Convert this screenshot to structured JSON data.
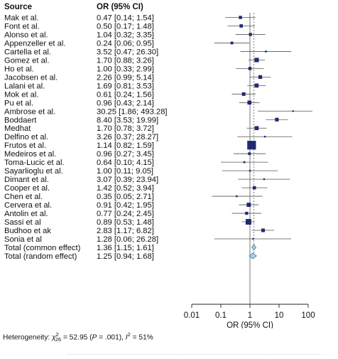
{
  "headers": {
    "source": "Source",
    "effect": "OR (95% CI)"
  },
  "chart_data": {
    "type": "forest",
    "scale": "log",
    "xlabel": "OR (95% CI)",
    "xticks": [
      0.01,
      0.1,
      1,
      10,
      100
    ],
    "xtick_labels": [
      "0.01",
      "0.1",
      "1",
      "10",
      "100"
    ],
    "xlim": [
      0.01,
      100
    ],
    "null_line": 1,
    "studies": [
      {
        "name": "Mak et al.",
        "label": "0.47 [0.14;  1.54]",
        "or": 0.47,
        "lo": 0.14,
        "hi": 1.54,
        "w": 3.2
      },
      {
        "name": "Font et al.",
        "label": "0.50 [0.17;  1.48]",
        "or": 0.5,
        "lo": 0.17,
        "hi": 1.48,
        "w": 3.5
      },
      {
        "name": "Alonso et al.",
        "label": "1.04 [0.32;  3.35]",
        "or": 1.04,
        "lo": 0.32,
        "hi": 3.35,
        "w": 2.9
      },
      {
        "name": "Appenzeller et al.",
        "label": "0.24 [0.06;  0.95]",
        "or": 0.24,
        "lo": 0.06,
        "hi": 0.95,
        "w": 2.3
      },
      {
        "name": "Cartella et al.",
        "label": "3.52 [0.47; 26.30]",
        "or": 3.52,
        "lo": 0.47,
        "hi": 26.3,
        "w": 1.0
      },
      {
        "name": "Gomez et al.",
        "label": "1.70 [0.88;  3.26]",
        "or": 1.7,
        "lo": 0.88,
        "hi": 3.26,
        "w": 6.0
      },
      {
        "name": "Ho et al.",
        "label": "1.00 [0.33;  2.99]",
        "or": 1.0,
        "lo": 0.33,
        "hi": 2.99,
        "w": 3.2
      },
      {
        "name": "Jacobsen et al.",
        "label": "2.26 [0.99;  5.14]",
        "or": 2.26,
        "lo": 0.99,
        "hi": 5.14,
        "w": 4.5
      },
      {
        "name": "Lalani et al.",
        "label": "1.69 [0.81;  3.53]",
        "or": 1.69,
        "lo": 0.81,
        "hi": 3.53,
        "w": 5.2
      },
      {
        "name": "Mok et al.",
        "label": "0.61 [0.24;  1.56]",
        "or": 0.61,
        "lo": 0.24,
        "hi": 1.56,
        "w": 4.0
      },
      {
        "name": "Pu et al.",
        "label": "0.96 [0.43;  2.14]",
        "or": 0.96,
        "lo": 0.43,
        "hi": 2.14,
        "w": 5.0
      },
      {
        "name": "Ambrose et al.",
        "label": "30.25 [1.86; 493.28]",
        "or": 30.25,
        "lo": 1.86,
        "hi": 493.28,
        "w": 0.4
      },
      {
        "name": "Boddaert",
        "label": "8.40 [3.53; 19.99]",
        "or": 8.4,
        "lo": 3.53,
        "hi": 19.99,
        "w": 4.2
      },
      {
        "name": "Medhat",
        "label": "1.70 [0.78;  3.72]",
        "or": 1.7,
        "lo": 0.78,
        "hi": 3.72,
        "w": 5.0
      },
      {
        "name": "Delfino et al.",
        "label": "3.26 [0.37; 28.27]",
        "or": 3.26,
        "lo": 0.37,
        "hi": 28.27,
        "w": 0.9
      },
      {
        "name": "Frutos et al.",
        "label": "1.14 [0.82;  1.59]",
        "or": 1.14,
        "lo": 0.82,
        "hi": 1.59,
        "w": 24.0
      },
      {
        "name": "Medeiros et al.",
        "label": "0.96 [0.27;  3.45]",
        "or": 0.96,
        "lo": 0.27,
        "hi": 3.45,
        "w": 2.4
      },
      {
        "name": "Toma-Lucic et al.",
        "label": "0.64 [0.10;  4.15]",
        "or": 0.64,
        "lo": 0.1,
        "hi": 4.15,
        "w": 1.2
      },
      {
        "name": "Sayarlioglu et al.",
        "label": "1.00 [0.11;  9.05]",
        "or": 1.0,
        "lo": 0.11,
        "hi": 9.05,
        "w": 0.9
      },
      {
        "name": "Dimant et al.",
        "label": "3.07 [0.39; 23.94]",
        "or": 3.07,
        "lo": 0.39,
        "hi": 23.94,
        "w": 0.9
      },
      {
        "name": "Cooper et al.",
        "label": "1.42 [0.52;  3.94]",
        "or": 1.42,
        "lo": 0.52,
        "hi": 3.94,
        "w": 3.4
      },
      {
        "name": "Chen et al.",
        "label": "0.35 [0.05;  2.71]",
        "or": 0.35,
        "lo": 0.05,
        "hi": 2.71,
        "w": 1.0
      },
      {
        "name": "Cervera et al.",
        "label": "0.91 [0.42;  1.95]",
        "or": 0.91,
        "lo": 0.42,
        "hi": 1.95,
        "w": 5.5
      },
      {
        "name": "Antolin et al.",
        "label": "0.77 [0.24;  2.45]",
        "or": 0.77,
        "lo": 0.24,
        "hi": 2.45,
        "w": 2.9
      },
      {
        "name": "Sassi et al",
        "label": "0.89 [0.53;  1.48]",
        "or": 0.89,
        "lo": 0.53,
        "hi": 1.48,
        "w": 10.0
      },
      {
        "name": "Budhoo et ak",
        "label": "2.83 [1.17;  6.82]",
        "or": 2.83,
        "lo": 1.17,
        "hi": 6.82,
        "w": 4.0
      },
      {
        "name": "Sonia et al",
        "label": "1.28 [0.06; 26.28]",
        "or": 1.28,
        "lo": 0.06,
        "hi": 26.28,
        "w": 0.5
      }
    ],
    "pooled": [
      {
        "name": "Total (common effect)",
        "label": "1.36 [1.15;  1.61]",
        "or": 1.36,
        "lo": 1.15,
        "hi": 1.61
      },
      {
        "name": "Total (random effect)",
        "label": "1.25 [0.94;  1.68]",
        "or": 1.25,
        "lo": 0.94,
        "hi": 1.68
      }
    ]
  },
  "heterogeneity": {
    "prefix": "Heterogeneity: ",
    "chi": "χ",
    "chi_sub": "26",
    "chi_sup": "2",
    "chi_val": " = 52.95 (",
    "p_letter": "P",
    "p_val": " = .001), ",
    "i_letter": "I",
    "i_sup": "2",
    "i_val": " = 51%"
  },
  "colors": {
    "square": "#1f2a6e",
    "diamond_fill": "#9fd4e8",
    "diamond_stroke": "#4a7f93",
    "ci_line": "#555555",
    "axis": "#222222"
  }
}
